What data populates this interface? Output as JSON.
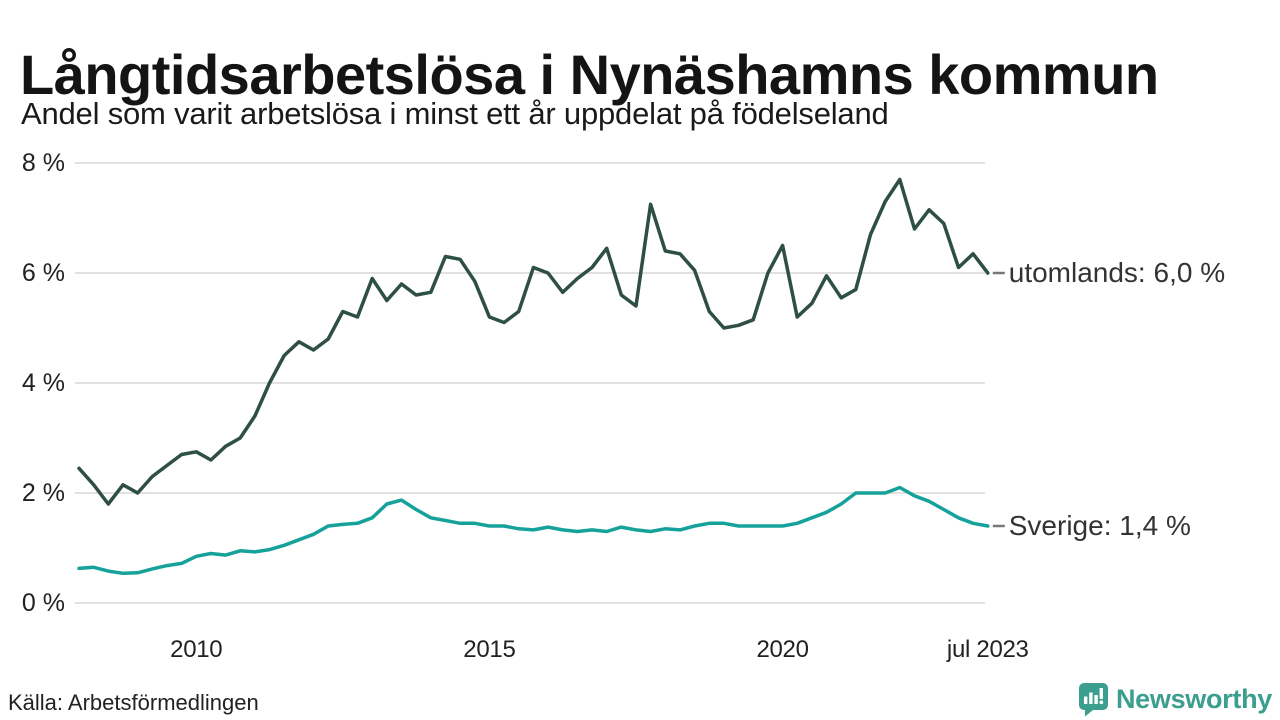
{
  "header": {
    "title": "Långtidsarbetslösa i Nynäshamns kommun",
    "subtitle": "Andel som varit arbetslösa i minst ett år uppdelat på födelseland"
  },
  "footer": {
    "source": "Källa: Arbetsförmedlingen",
    "brand": "Newsworthy"
  },
  "colors": {
    "utomlands_line": "#2d4f45",
    "sverige_line": "#16a29a",
    "grid": "#e1e1e1",
    "end_dash": "#777777",
    "end_label_text": "#333333",
    "brand_teal": "#3b9e8e",
    "title_text": "#141414"
  },
  "chart_data": {
    "type": "line",
    "title": "Långtidsarbetslösa i Nynäshamns kommun",
    "subtitle": "Andel som varit arbetslösa i minst ett år uppdelat på födelseland",
    "xlabel": "",
    "ylabel": "",
    "y_unit": "percent",
    "x_unit": "year (quarterly samples, 2008 – jul 2023)",
    "ylim": [
      0,
      8
    ],
    "x_range": [
      2008,
      2023.5
    ],
    "grid": "horizontal",
    "legend_position": "right-end-labels",
    "y_ticks": [
      {
        "label": "0 %",
        "value": 0
      },
      {
        "label": "2 %",
        "value": 2
      },
      {
        "label": "4 %",
        "value": 4
      },
      {
        "label": "6 %",
        "value": 6
      },
      {
        "label": "8 %",
        "value": 8
      }
    ],
    "x_ticks": [
      {
        "label": "2010",
        "year": 2010
      },
      {
        "label": "2015",
        "year": 2015
      },
      {
        "label": "2020",
        "year": 2020
      },
      {
        "label": "jul 2023",
        "year": 2023.5
      }
    ],
    "x": [
      2008,
      2008.25,
      2008.5,
      2008.75,
      2009,
      2009.25,
      2009.5,
      2009.75,
      2010,
      2010.25,
      2010.5,
      2010.75,
      2011,
      2011.25,
      2011.5,
      2011.75,
      2012,
      2012.25,
      2012.5,
      2012.75,
      2013,
      2013.25,
      2013.5,
      2013.75,
      2014,
      2014.25,
      2014.5,
      2014.75,
      2015,
      2015.25,
      2015.5,
      2015.75,
      2016,
      2016.25,
      2016.5,
      2016.75,
      2017,
      2017.25,
      2017.5,
      2017.75,
      2018,
      2018.25,
      2018.5,
      2018.75,
      2019,
      2019.25,
      2019.5,
      2019.75,
      2020,
      2020.25,
      2020.5,
      2020.75,
      2021,
      2021.25,
      2021.5,
      2021.75,
      2022,
      2022.25,
      2022.5,
      2022.75,
      2023,
      2023.25,
      2023.5
    ],
    "series": [
      {
        "name": "utomlands",
        "color": "#2d4f45",
        "end_label": "utomlands: 6,0 %",
        "last_value": "6,0 %",
        "values": [
          2.45,
          2.15,
          1.8,
          2.15,
          2.0,
          2.3,
          2.5,
          2.7,
          2.75,
          2.6,
          2.85,
          3.0,
          3.4,
          4.0,
          4.5,
          4.75,
          4.6,
          4.8,
          5.3,
          5.2,
          5.9,
          5.5,
          5.8,
          5.6,
          5.65,
          6.3,
          6.25,
          5.85,
          5.2,
          5.1,
          5.3,
          6.1,
          6.0,
          5.65,
          5.9,
          6.1,
          6.45,
          5.6,
          5.4,
          7.25,
          6.4,
          6.35,
          6.05,
          5.3,
          5.0,
          5.05,
          5.15,
          6.0,
          6.5,
          5.2,
          5.45,
          5.95,
          5.55,
          5.7,
          6.7,
          7.3,
          7.7,
          6.8,
          7.15,
          6.9,
          6.1,
          6.35,
          6.0
        ]
      },
      {
        "name": "Sverige",
        "color": "#16a29a",
        "end_label": "Sverige: 1,4 %",
        "last_value": "1,4 %",
        "values": [
          0.63,
          0.65,
          0.58,
          0.54,
          0.55,
          0.62,
          0.68,
          0.72,
          0.85,
          0.9,
          0.87,
          0.95,
          0.93,
          0.97,
          1.05,
          1.15,
          1.25,
          1.4,
          1.43,
          1.45,
          1.55,
          1.8,
          1.87,
          1.7,
          1.55,
          1.5,
          1.45,
          1.45,
          1.4,
          1.4,
          1.35,
          1.33,
          1.38,
          1.33,
          1.3,
          1.33,
          1.3,
          1.38,
          1.33,
          1.3,
          1.35,
          1.33,
          1.4,
          1.45,
          1.45,
          1.4,
          1.4,
          1.4,
          1.4,
          1.45,
          1.55,
          1.65,
          1.8,
          2.0,
          2.0,
          2.0,
          2.1,
          1.95,
          1.85,
          1.7,
          1.55,
          1.45,
          1.4
        ]
      }
    ]
  }
}
